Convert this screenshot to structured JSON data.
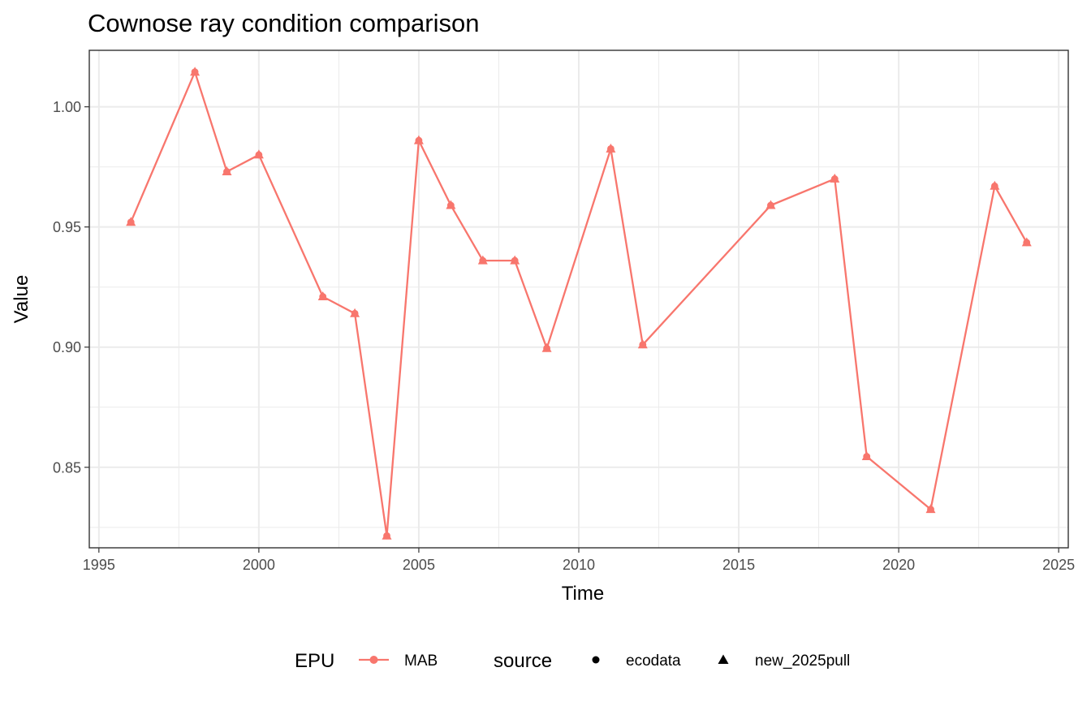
{
  "chart_data": {
    "type": "line",
    "title": "Cownose ray condition comparison",
    "xlabel": "Time",
    "ylabel": "Value",
    "xlim": [
      1994.7,
      2025.3
    ],
    "ylim": [
      0.8165,
      1.0235
    ],
    "x_ticks": [
      1995,
      2000,
      2005,
      2010,
      2015,
      2020,
      2025
    ],
    "x_tick_labels": [
      "1995",
      "2000",
      "2005",
      "2010",
      "2015",
      "2020",
      "2025"
    ],
    "y_ticks": [
      0.85,
      0.9,
      0.95,
      1.0
    ],
    "y_tick_labels": [
      "0.85",
      "0.90",
      "0.95",
      "1.00"
    ],
    "grid": true,
    "legend_position": "bottom",
    "series": [
      {
        "name": "MAB",
        "color": "#F8766D",
        "x": [
          1996,
          1998,
          1999,
          2000,
          2002,
          2003,
          2004,
          2005,
          2006,
          2007,
          2008,
          2009,
          2011,
          2012,
          2016,
          2018,
          2019,
          2021,
          2023,
          2024
        ],
        "y": [
          0.952,
          1.0145,
          0.973,
          0.98,
          0.921,
          0.914,
          0.8215,
          0.986,
          0.959,
          0.936,
          0.936,
          0.8995,
          0.9825,
          0.901,
          0.959,
          0.97,
          0.8545,
          0.8325,
          0.967,
          0.9435
        ]
      }
    ],
    "legend": {
      "color_title": "EPU",
      "color_items": [
        {
          "label": "MAB",
          "color": "#F8766D"
        }
      ],
      "shape_title": "source",
      "shape_items": [
        {
          "label": "ecodata",
          "shape": "circle-icon"
        },
        {
          "label": "new_2025pull",
          "shape": "triangle-icon"
        }
      ]
    }
  }
}
